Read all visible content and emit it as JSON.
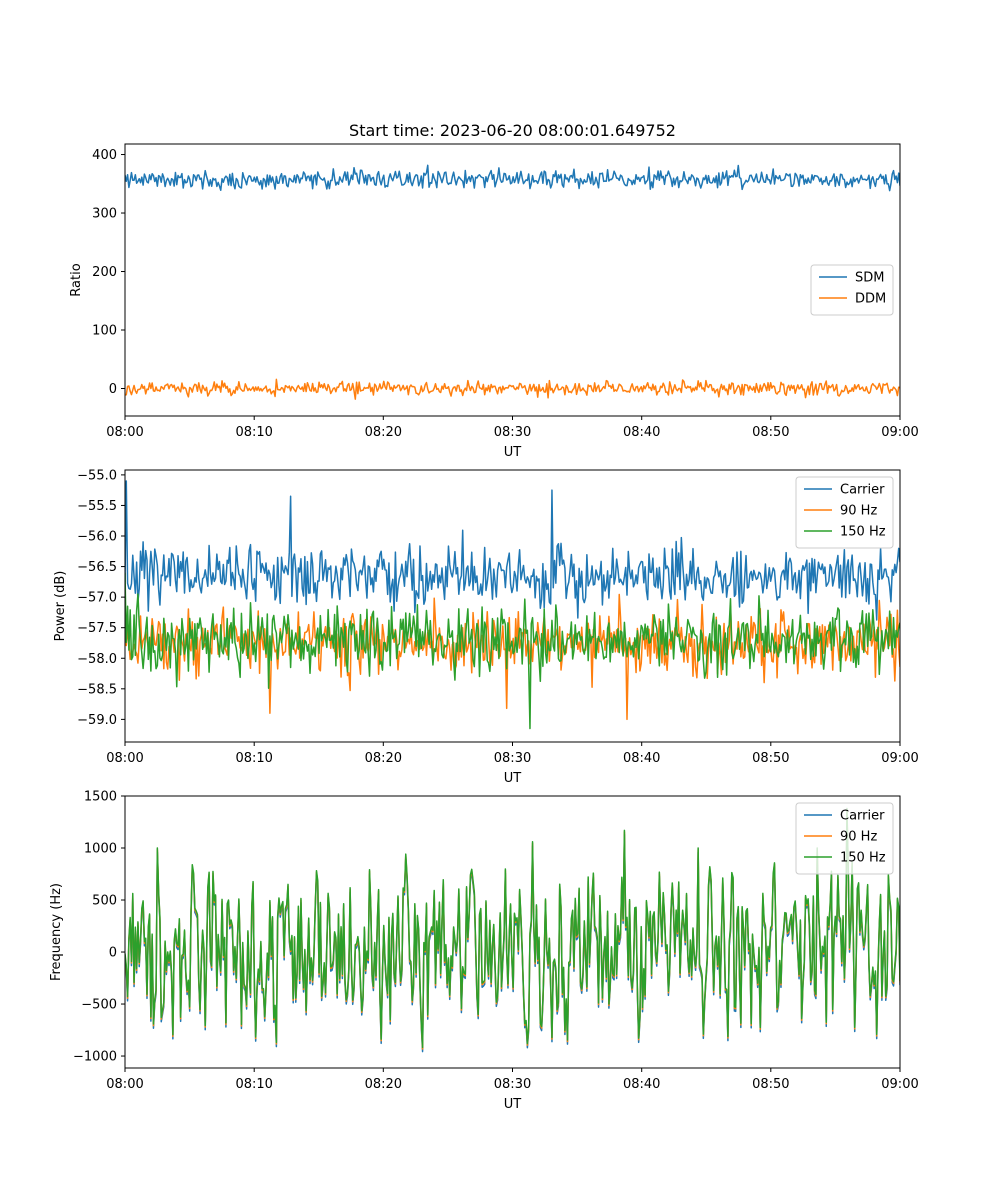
{
  "figure_title": "Start time: 2023-06-20 08:00:01.649752",
  "colors": {
    "blue": "#1f77b4",
    "orange": "#ff7f0e",
    "green": "#2ca02c"
  },
  "chart_data": [
    {
      "type": "line",
      "title": "Start time: 2023-06-20 08:00:01.649752",
      "xlabel": "UT",
      "ylabel": "Ratio",
      "xlim": [
        "08:00",
        "09:00"
      ],
      "ylim": [
        -47,
        418
      ],
      "x_ticks": [
        "08:00",
        "08:10",
        "08:20",
        "08:30",
        "08:40",
        "08:50",
        "09:00"
      ],
      "y_ticks": [
        0,
        100,
        200,
        300,
        400
      ],
      "y_tick_labels": [
        "0",
        "100",
        "200",
        "300",
        "400"
      ],
      "legend_position": "center-right",
      "grid": false,
      "series": [
        {
          "name": "SDM",
          "color": "#1f77b4",
          "points": 600,
          "mean": 358,
          "spread": 11,
          "generated": true
        },
        {
          "name": "DDM",
          "color": "#ff7f0e",
          "points": 600,
          "mean": 0,
          "spread": 8,
          "generated": true
        }
      ]
    },
    {
      "type": "line",
      "xlabel": "UT",
      "ylabel": "Power (dB)",
      "xlim": [
        "08:00",
        "09:00"
      ],
      "ylim": [
        -59.37,
        -54.92
      ],
      "x_ticks": [
        "08:00",
        "08:10",
        "08:20",
        "08:30",
        "08:40",
        "08:50",
        "09:00"
      ],
      "y_ticks": [
        -59.0,
        -58.5,
        -58.0,
        -57.5,
        -57.0,
        -56.5,
        -56.0,
        -55.5,
        -55.0
      ],
      "y_tick_labels": [
        "−59.0",
        "−58.5",
        "−58.0",
        "−57.5",
        "−57.0",
        "−56.5",
        "−56.0",
        "−55.5",
        "−55.0"
      ],
      "legend_position": "upper-right",
      "grid": false,
      "series": [
        {
          "name": "Carrier",
          "color": "#1f77b4",
          "points": 600,
          "mean": -56.65,
          "spread": 0.3,
          "generated": true
        },
        {
          "name": "90 Hz",
          "color": "#ff7f0e",
          "points": 600,
          "mean": -57.75,
          "spread": 0.33,
          "generated": true
        },
        {
          "name": "150 Hz",
          "color": "#2ca02c",
          "points": 600,
          "mean": -57.7,
          "spread": 0.35,
          "generated": true
        }
      ]
    },
    {
      "type": "line",
      "xlabel": "UT",
      "ylabel": "Frequency (Hz)",
      "xlim": [
        "08:00",
        "09:00"
      ],
      "ylim": [
        -1115,
        1500
      ],
      "x_ticks": [
        "08:00",
        "08:10",
        "08:20",
        "08:30",
        "08:40",
        "08:50",
        "09:00"
      ],
      "y_ticks": [
        -1000,
        -500,
        0,
        500,
        1000,
        1500
      ],
      "y_tick_labels": [
        "−1000",
        "−500",
        "0",
        "500",
        "1000",
        "1500"
      ],
      "legend_position": "upper-right",
      "grid": false,
      "series": [
        {
          "name": "Carrier",
          "color": "#1f77b4",
          "points": 600,
          "range": [
            -1000,
            1300
          ],
          "generated": true
        },
        {
          "name": "90 Hz",
          "color": "#ff7f0e",
          "points": 600,
          "range": [
            -1000,
            1300
          ],
          "generated": true
        },
        {
          "name": "150 Hz",
          "color": "#2ca02c",
          "points": 600,
          "range": [
            -1000,
            1380
          ],
          "generated": true
        }
      ]
    }
  ]
}
